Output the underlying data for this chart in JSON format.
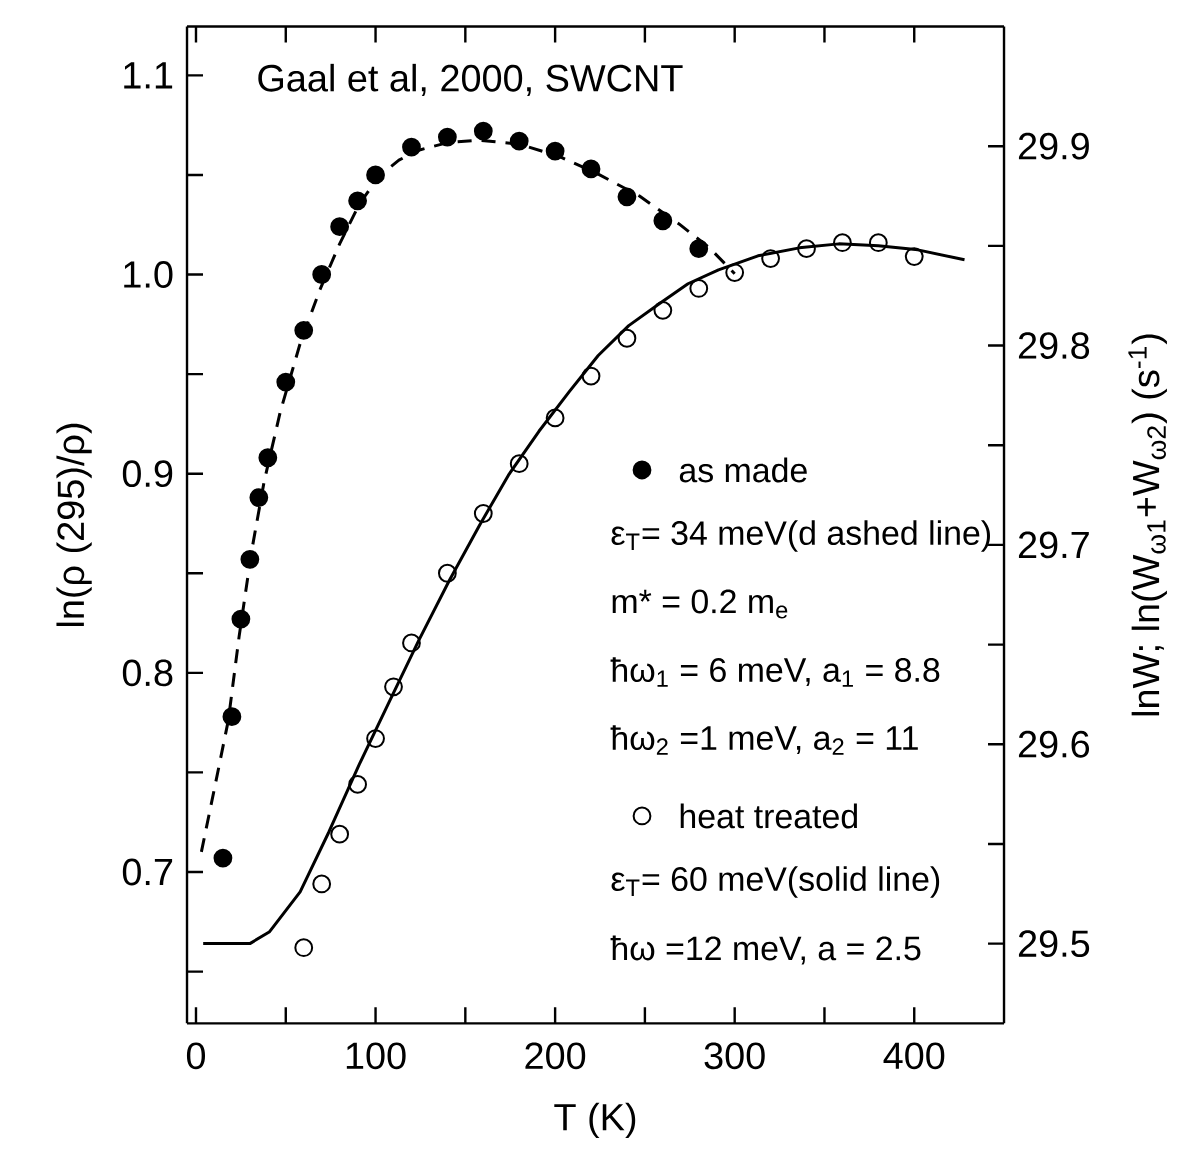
{
  "chart_data": {
    "type": "scatter",
    "xlabel": "T (K)",
    "ylabel": "ln(ρ (295)/ρ)",
    "y2label": "lnW;   ln(W$_{ω1}$+W$_{ω2}$) (s$^{-1}$)",
    "annotations": [
      "Gaal et  al,  2000, SWCNT",
      "ε$_{T}$= 34 meV(d ashed line)",
      "m* = 0.2 m$_{e}$",
      "ħω$_{1}$ = 6 meV,  a$_{1}$ = 8.8",
      "ħω$_{2}$ =1 meV, a$_{2}$ = 11",
      "ε$_{T}$= 60 meV(solid line)",
      "ħω =12 meV, a = 2.5"
    ],
    "xlim": [
      -5,
      450
    ],
    "ylim": [
      0.624,
      1.1245
    ],
    "y2lim": [
      29.46,
      29.96
    ],
    "xticks": [
      0,
      {
        "value": 50,
        "label": null
      },
      100,
      {
        "value": 150,
        "label": null
      },
      200,
      {
        "value": 250,
        "label": null
      },
      300,
      {
        "value": 350,
        "label": null
      },
      400
    ],
    "yticks": [
      {
        "value": 0.65,
        "label": null
      },
      0.7,
      {
        "value": 0.75,
        "label": null
      },
      0.8,
      {
        "value": 0.85,
        "label": null
      },
      0.9,
      {
        "value": 0.95,
        "label": null
      },
      {
        "value": 1.0,
        "label": "1.0"
      },
      {
        "value": 1.05,
        "label": null
      },
      1.1
    ],
    "y2ticks": [
      29.5,
      {
        "value": 29.55,
        "label": null
      },
      29.6,
      {
        "value": 29.65,
        "label": null
      },
      29.7,
      {
        "value": 29.75,
        "label": null
      },
      29.8,
      {
        "value": 29.85,
        "label": null
      },
      29.9
    ],
    "legend": "right",
    "grid": false,
    "series": [
      {
        "name": "as made",
        "color": "#000000",
        "marker": "circle",
        "x": [
          15,
          20,
          25,
          30,
          35,
          40,
          50,
          60,
          70,
          80,
          90,
          100,
          120,
          140,
          160,
          180,
          200,
          220,
          240,
          260,
          280
        ],
        "values": [
          0.707,
          0.778,
          0.827,
          0.857,
          0.888,
          0.908,
          0.946,
          0.972,
          1.0,
          1.024,
          1.037,
          1.05,
          1.064,
          1.069,
          1.072,
          1.067,
          1.062,
          1.053,
          1.039,
          1.027,
          1.013
        ]
      },
      {
        "name": "heat treated",
        "color": "#000000",
        "marker": "circle",
        "x": [
          60,
          70,
          80,
          90,
          100,
          110,
          120,
          140,
          160,
          180,
          200,
          220,
          240,
          260,
          280,
          300,
          320,
          340,
          360,
          380,
          400
        ],
        "values": [
          0.662,
          0.694,
          0.719,
          0.744,
          0.767,
          0.793,
          0.815,
          0.85,
          0.88,
          0.905,
          0.928,
          0.949,
          0.968,
          0.982,
          0.993,
          1.001,
          1.008,
          1.013,
          1.016,
          1.016,
          1.009
        ]
      },
      {
        "type": "line",
        "axis": "y2",
        "color": "#000000",
        "line_style": "dashed",
        "x": [
          3,
          11,
          18,
          24,
          31,
          38,
          47,
          58,
          69,
          80,
          91,
          102,
          113,
          124,
          141,
          158,
          180,
          202,
          224,
          247,
          269,
          286,
          300
        ],
        "values": [
          29.546,
          29.581,
          29.612,
          29.654,
          29.697,
          29.732,
          29.767,
          29.801,
          29.828,
          29.851,
          29.871,
          29.885,
          29.893,
          29.898,
          29.902,
          29.903,
          29.901,
          29.895,
          29.886,
          29.875,
          29.861,
          29.849,
          29.836
        ]
      },
      {
        "type": "line",
        "axis": "y2",
        "color": "#000000",
        "line_style": "solid",
        "x": [
          4,
          30,
          41,
          58,
          74,
          91,
          108,
          124,
          141,
          158,
          174,
          191,
          208,
          224,
          241,
          258,
          274,
          291,
          313,
          336,
          358,
          380,
          402,
          428
        ],
        "values": [
          29.5,
          29.5,
          29.506,
          29.526,
          29.556,
          29.59,
          29.622,
          29.652,
          29.682,
          29.71,
          29.735,
          29.757,
          29.777,
          29.795,
          29.81,
          29.821,
          29.831,
          29.838,
          29.845,
          29.849,
          29.851,
          29.85,
          29.848,
          29.843
        ]
      }
    ]
  }
}
